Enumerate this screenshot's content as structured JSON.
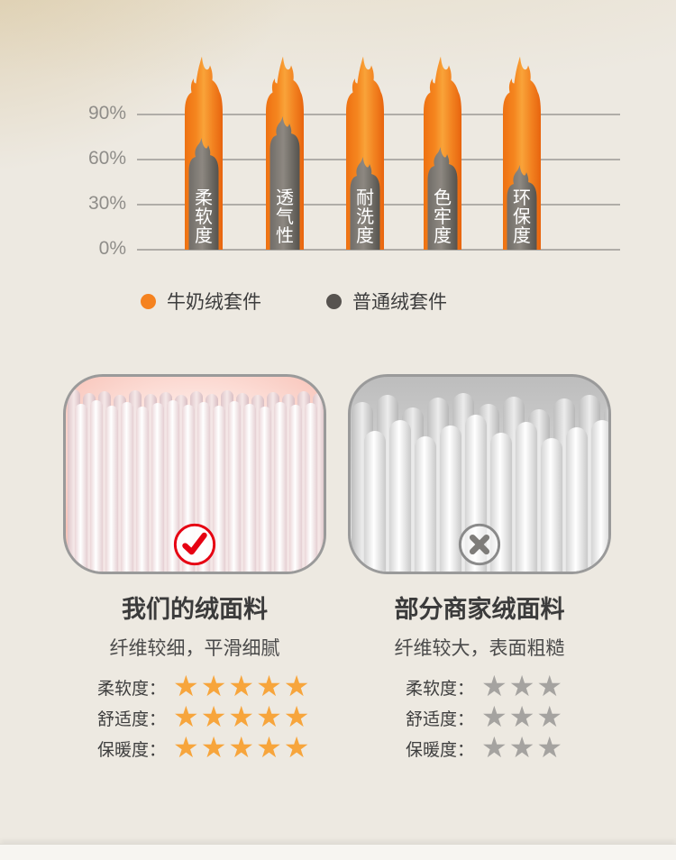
{
  "chart_data": {
    "type": "bar",
    "title": "",
    "categories": [
      "柔软度",
      "透气性",
      "耐洗度",
      "色牢度",
      "环保度"
    ],
    "series": [
      {
        "name": "牛奶绒套件",
        "color": "#F5821F",
        "values": [
          100,
          100,
          100,
          100,
          100
        ]
      },
      {
        "name": "普通绒套件",
        "color": "#6E6A65",
        "values": [
          62,
          76,
          49,
          56,
          44
        ]
      }
    ],
    "ylim": [
      0,
      100
    ],
    "yticks": [
      90,
      60,
      30,
      0
    ],
    "ytick_labels": [
      "90%",
      "60%",
      "30%",
      "0%"
    ],
    "grid": true,
    "legend_position": "bottom",
    "bar_style": "flame"
  },
  "legend": {
    "items": [
      {
        "label": "牛奶绒套件",
        "color": "#F5821F"
      },
      {
        "label": "普通绒套件",
        "color": "#57534F"
      }
    ]
  },
  "comparison": {
    "left": {
      "title": "我们的绒面料",
      "subtitle": "纤维较细，平滑细腻",
      "badge": "check",
      "badge_icon": "check-icon",
      "badge_color": "#E60012",
      "star_color": "#F7A53C",
      "ratings": [
        {
          "label": "柔软度：",
          "stars": 5
        },
        {
          "label": "舒适度：",
          "stars": 5
        },
        {
          "label": "保暖度：",
          "stars": 5
        }
      ]
    },
    "right": {
      "title": "部分商家绒面料",
      "subtitle": "纤维较大，表面粗糙",
      "badge": "cross",
      "badge_icon": "x-icon",
      "badge_color": "#8A8A8A",
      "star_color": "#A5A3A0",
      "ratings": [
        {
          "label": "柔软度：",
          "stars": 3
        },
        {
          "label": "舒适度：",
          "stars": 3
        },
        {
          "label": "保暖度：",
          "stars": 3
        }
      ]
    },
    "max_stars": 5
  },
  "colors": {
    "background": "#EDE9E1",
    "background_warm": "#E7DCC3",
    "gridline": "#B0ADA8",
    "axis_text": "#8F8D89",
    "bar_orange": "#F5821F",
    "bar_gray": "#6E6A65",
    "title_text": "#3B3B3B",
    "body_text": "#4A4A4A"
  }
}
